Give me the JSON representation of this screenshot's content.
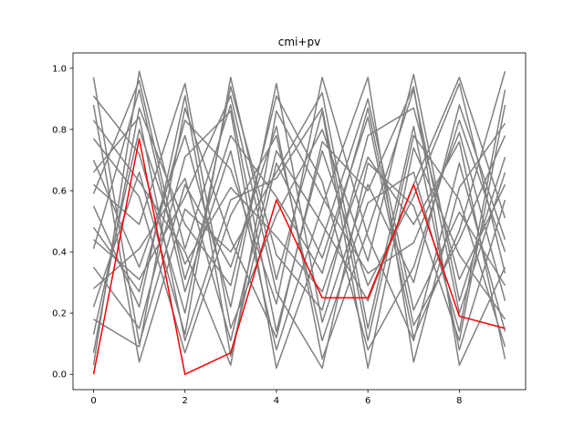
{
  "chart_data": {
    "type": "line",
    "title": "cmi+pv",
    "xlabel": "",
    "ylabel": "",
    "xlim": [
      -0.45,
      9.45
    ],
    "ylim": [
      -0.05,
      1.05
    ],
    "grid": false,
    "x_ticks": [
      0,
      2,
      4,
      6,
      8
    ],
    "y_ticks": [
      "0.0",
      "0.2",
      "0.4",
      "0.6",
      "0.8",
      "1.0"
    ],
    "x": [
      0,
      1,
      2,
      3,
      4,
      5,
      6,
      7,
      8,
      9
    ],
    "background_color": "#808080",
    "highlight_color": "#ff0000",
    "background_series": [
      {
        "values": [
          0.97,
          0.1,
          0.62,
          0.35,
          0.81,
          0.05,
          0.47,
          0.93,
          0.2,
          0.66
        ]
      },
      {
        "values": [
          0.03,
          0.99,
          0.41,
          0.88,
          0.14,
          0.73,
          0.29,
          0.58,
          0.95,
          0.33
        ]
      },
      {
        "values": [
          0.55,
          0.22,
          0.91,
          0.06,
          0.69,
          0.38,
          0.84,
          0.12,
          0.47,
          0.99
        ]
      },
      {
        "values": [
          0.22,
          0.66,
          0.13,
          0.97,
          0.31,
          0.86,
          0.02,
          0.74,
          0.39,
          0.18
        ]
      },
      {
        "values": [
          0.7,
          0.35,
          0.78,
          0.22,
          0.95,
          0.17,
          0.62,
          0.3,
          0.88,
          0.44
        ]
      },
      {
        "values": [
          0.41,
          0.93,
          0.27,
          0.73,
          0.08,
          0.55,
          0.97,
          0.04,
          0.61,
          0.82
        ]
      },
      {
        "values": [
          0.88,
          0.04,
          0.54,
          0.4,
          0.66,
          0.92,
          0.15,
          0.81,
          0.08,
          0.57
        ]
      },
      {
        "values": [
          0.13,
          0.8,
          0.36,
          0.61,
          0.45,
          0.27,
          0.71,
          0.49,
          0.76,
          0.05
        ]
      },
      {
        "values": [
          0.62,
          0.49,
          0.95,
          0.15,
          0.52,
          0.8,
          0.37,
          0.98,
          0.24,
          0.71
        ]
      },
      {
        "values": [
          0.35,
          0.15,
          0.71,
          0.86,
          0.02,
          0.44,
          0.9,
          0.21,
          0.53,
          0.29
        ]
      },
      {
        "values": [
          0.77,
          0.58,
          0.07,
          0.52,
          0.78,
          0.11,
          0.56,
          0.66,
          0.14,
          0.93
        ]
      },
      {
        "values": [
          0.07,
          0.87,
          0.49,
          0.29,
          0.91,
          0.63,
          0.08,
          0.35,
          0.83,
          0.4
        ]
      },
      {
        "values": [
          0.48,
          0.27,
          0.83,
          0.67,
          0.23,
          0.97,
          0.45,
          0.11,
          0.69,
          0.14
        ]
      },
      {
        "values": [
          0.91,
          0.72,
          0.2,
          0.94,
          0.39,
          0.21,
          0.78,
          0.87,
          0.31,
          0.62
        ]
      },
      {
        "values": [
          0.28,
          0.41,
          0.64,
          0.11,
          0.73,
          0.49,
          0.24,
          0.62,
          0.97,
          0.51
        ]
      },
      {
        "values": [
          0.59,
          0.96,
          0.31,
          0.78,
          0.58,
          0.33,
          0.87,
          0.16,
          0.44,
          0.78
        ]
      },
      {
        "values": [
          0.18,
          0.09,
          0.87,
          0.44,
          0.12,
          0.76,
          0.6,
          0.94,
          0.03,
          0.35
        ]
      },
      {
        "values": [
          0.83,
          0.63,
          0.4,
          0.03,
          0.86,
          0.58,
          0.33,
          0.43,
          0.79,
          0.24
        ]
      },
      {
        "values": [
          0.44,
          0.31,
          0.58,
          0.91,
          0.27,
          0.02,
          0.69,
          0.55,
          0.11,
          0.88
        ]
      },
      {
        "values": [
          0.66,
          0.84,
          0.11,
          0.57,
          0.64,
          0.87,
          0.11,
          0.78,
          0.57,
          0.09
        ]
      }
    ],
    "highlight_series": {
      "values": [
        0.0,
        0.77,
        0.0,
        0.07,
        0.57,
        0.25,
        0.25,
        0.62,
        0.19,
        0.15
      ]
    }
  }
}
